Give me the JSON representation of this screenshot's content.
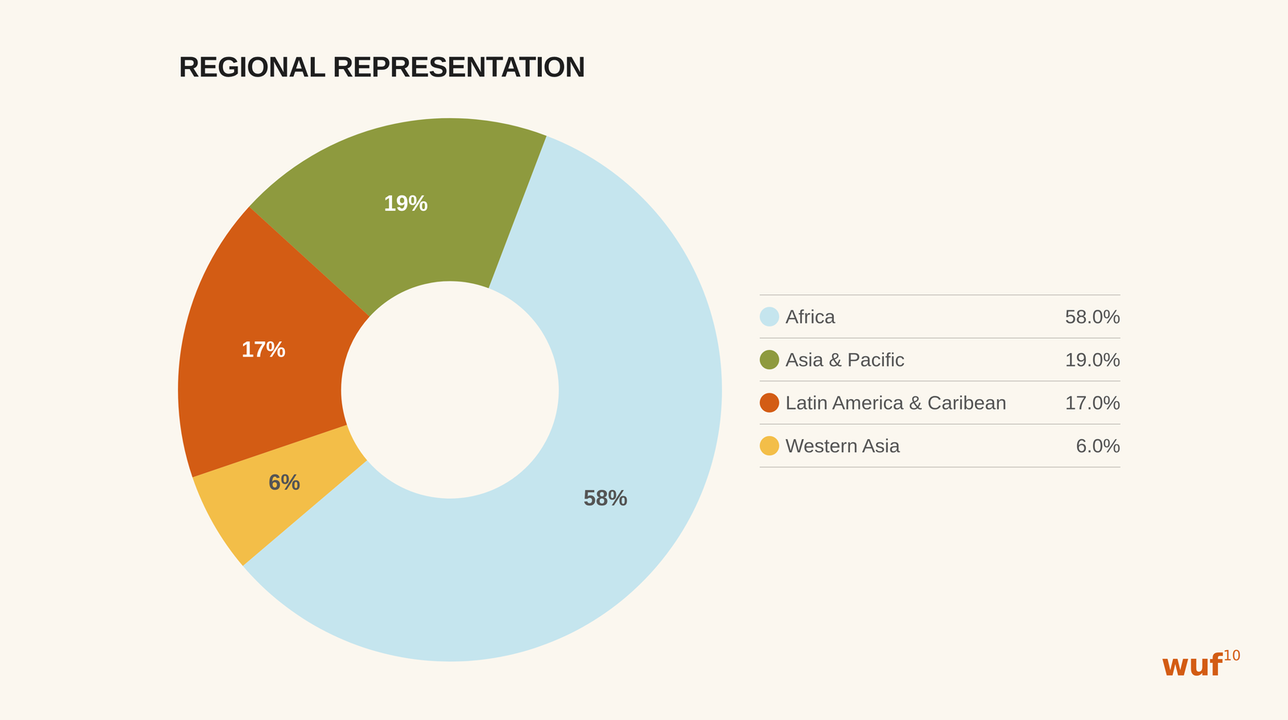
{
  "chart_data": {
    "type": "doughnut",
    "title": "REGIONAL REPRESENTATION",
    "categories": [
      "Africa",
      "Asia & Pacific",
      "Latin America & Caribean",
      "Western Asia"
    ],
    "values": [
      58,
      19,
      17,
      6
    ],
    "colors": [
      "#c5e5ee",
      "#8e9a3e",
      "#d35c14",
      "#f3be48"
    ],
    "data_labels": true,
    "value_labels": [
      "58%",
      "19%",
      "17%",
      "6%"
    ],
    "legend": "right",
    "legend_value_labels": [
      "58.0%",
      "19.0%",
      "17.0%",
      "6.0%"
    ]
  },
  "logo": {
    "text": "wuf",
    "superscript": "10"
  }
}
